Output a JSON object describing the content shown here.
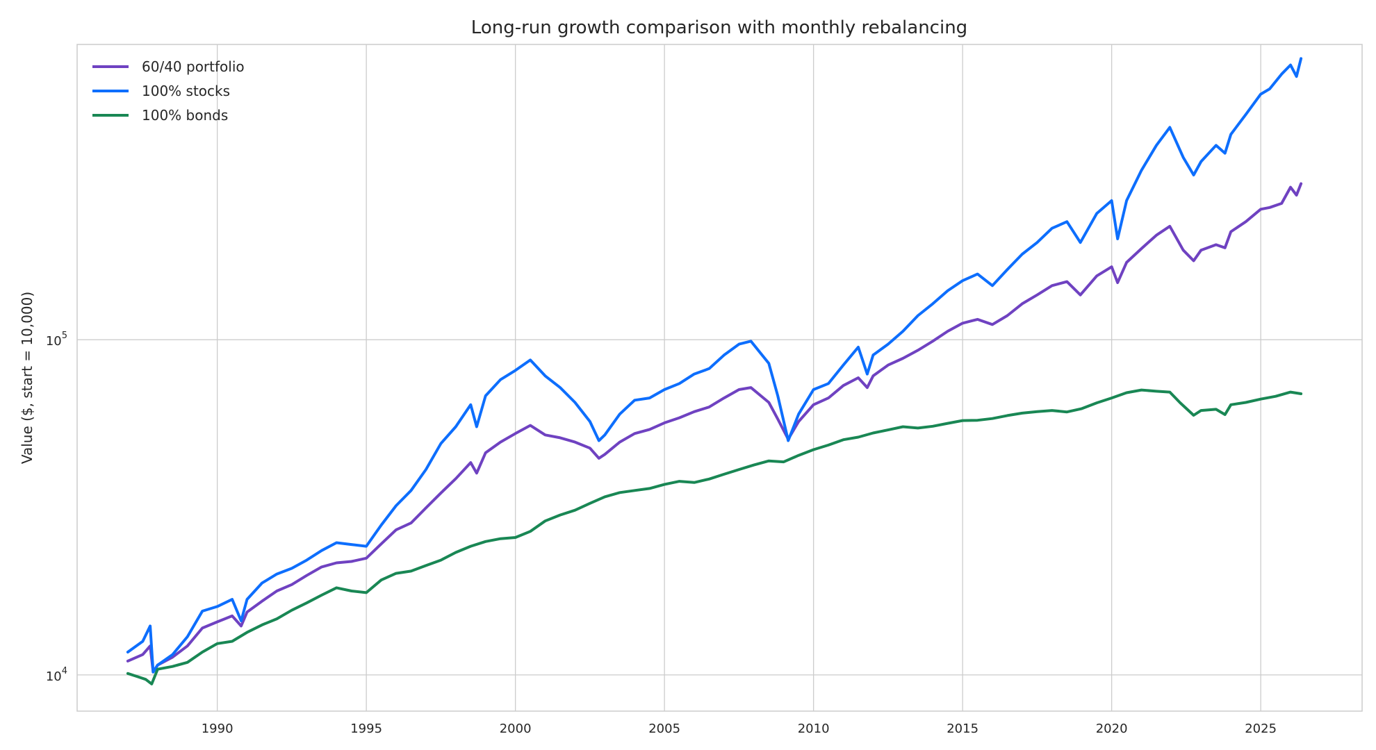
{
  "chart_data": {
    "type": "line",
    "title": "Long-run growth comparison with monthly rebalancing",
    "xlabel": "",
    "ylabel": "Value ($, start = 10,000)",
    "yscale": "log",
    "xlim": [
      1985.3,
      2028.4
    ],
    "ylim": [
      7800,
      760000
    ],
    "grid": true,
    "legend_position": "top-left",
    "x_ticks": [
      1990,
      1995,
      2000,
      2005,
      2010,
      2015,
      2020,
      2025
    ],
    "x_tick_labels": [
      "1990",
      "1995",
      "2000",
      "2005",
      "2010",
      "2015",
      "2020",
      "2025"
    ],
    "y_ticks": [
      {
        "value": 10000,
        "base": "10",
        "exp": "4"
      },
      {
        "value": 100000,
        "base": "10",
        "exp": "5"
      }
    ],
    "series": [
      {
        "name": "60/40 portfolio",
        "color": "#6f42c1",
        "points": [
          [
            1987.0,
            11000
          ],
          [
            1987.5,
            11500
          ],
          [
            1987.75,
            12200
          ],
          [
            1987.85,
            10200
          ],
          [
            1988.0,
            10700
          ],
          [
            1988.5,
            11300
          ],
          [
            1989.0,
            12200
          ],
          [
            1989.5,
            13800
          ],
          [
            1990.0,
            14400
          ],
          [
            1990.5,
            15000
          ],
          [
            1990.8,
            14000
          ],
          [
            1991.0,
            15400
          ],
          [
            1991.5,
            16600
          ],
          [
            1992.0,
            17800
          ],
          [
            1992.5,
            18600
          ],
          [
            1993.0,
            19800
          ],
          [
            1993.5,
            21000
          ],
          [
            1994.0,
            21600
          ],
          [
            1994.5,
            21800
          ],
          [
            1995.0,
            22300
          ],
          [
            1995.5,
            24600
          ],
          [
            1996.0,
            27100
          ],
          [
            1996.5,
            28400
          ],
          [
            1997.0,
            31500
          ],
          [
            1997.5,
            34900
          ],
          [
            1998.0,
            38500
          ],
          [
            1998.5,
            43000
          ],
          [
            1998.7,
            40000
          ],
          [
            1999.0,
            46000
          ],
          [
            1999.5,
            49500
          ],
          [
            2000.0,
            52500
          ],
          [
            2000.5,
            55500
          ],
          [
            2001.0,
            52000
          ],
          [
            2001.5,
            51000
          ],
          [
            2002.0,
            49500
          ],
          [
            2002.5,
            47500
          ],
          [
            2002.8,
            44300
          ],
          [
            2003.0,
            45500
          ],
          [
            2003.5,
            49500
          ],
          [
            2004.0,
            52500
          ],
          [
            2004.5,
            54000
          ],
          [
            2005.0,
            56500
          ],
          [
            2005.5,
            58500
          ],
          [
            2006.0,
            61000
          ],
          [
            2006.5,
            63000
          ],
          [
            2007.0,
            67000
          ],
          [
            2007.5,
            71000
          ],
          [
            2007.9,
            72000
          ],
          [
            2008.5,
            65000
          ],
          [
            2008.8,
            58000
          ],
          [
            2009.15,
            50500
          ],
          [
            2009.5,
            57000
          ],
          [
            2010.0,
            64000
          ],
          [
            2010.5,
            67000
          ],
          [
            2011.0,
            73000
          ],
          [
            2011.5,
            77000
          ],
          [
            2011.8,
            72000
          ],
          [
            2012.0,
            78000
          ],
          [
            2012.5,
            84000
          ],
          [
            2013.0,
            88000
          ],
          [
            2013.5,
            93000
          ],
          [
            2014.0,
            99000
          ],
          [
            2014.5,
            106000
          ],
          [
            2015.0,
            112000
          ],
          [
            2015.5,
            115000
          ],
          [
            2016.0,
            111000
          ],
          [
            2016.5,
            118000
          ],
          [
            2017.0,
            128000
          ],
          [
            2017.5,
            136000
          ],
          [
            2018.0,
            145000
          ],
          [
            2018.5,
            149000
          ],
          [
            2018.95,
            136000
          ],
          [
            2019.5,
            155000
          ],
          [
            2020.0,
            165000
          ],
          [
            2020.2,
            148000
          ],
          [
            2020.5,
            170000
          ],
          [
            2021.0,
            187000
          ],
          [
            2021.5,
            205000
          ],
          [
            2021.95,
            218000
          ],
          [
            2022.4,
            185000
          ],
          [
            2022.75,
            172000
          ],
          [
            2023.0,
            185000
          ],
          [
            2023.5,
            192000
          ],
          [
            2023.8,
            188000
          ],
          [
            2024.0,
            210000
          ],
          [
            2024.5,
            225000
          ],
          [
            2025.0,
            245000
          ],
          [
            2025.3,
            248000
          ],
          [
            2025.7,
            255000
          ],
          [
            2026.0,
            285000
          ],
          [
            2026.2,
            270000
          ],
          [
            2026.35,
            292000
          ]
        ]
      },
      {
        "name": "100% stocks",
        "color": "#0d6efd",
        "points": [
          [
            1987.0,
            11700
          ],
          [
            1987.5,
            12600
          ],
          [
            1987.75,
            14000
          ],
          [
            1987.85,
            10200
          ],
          [
            1988.0,
            10700
          ],
          [
            1988.5,
            11500
          ],
          [
            1989.0,
            13000
          ],
          [
            1989.5,
            15500
          ],
          [
            1990.0,
            16000
          ],
          [
            1990.5,
            16800
          ],
          [
            1990.8,
            14500
          ],
          [
            1991.0,
            16800
          ],
          [
            1991.5,
            18800
          ],
          [
            1992.0,
            20000
          ],
          [
            1992.5,
            20800
          ],
          [
            1993.0,
            22000
          ],
          [
            1993.5,
            23500
          ],
          [
            1994.0,
            24800
          ],
          [
            1994.5,
            24500
          ],
          [
            1995.0,
            24200
          ],
          [
            1995.5,
            28000
          ],
          [
            1996.0,
            32000
          ],
          [
            1996.5,
            35500
          ],
          [
            1997.0,
            41000
          ],
          [
            1997.5,
            49000
          ],
          [
            1998.0,
            55000
          ],
          [
            1998.5,
            64000
          ],
          [
            1998.7,
            55000
          ],
          [
            1999.0,
            68000
          ],
          [
            1999.5,
            76000
          ],
          [
            2000.0,
            81000
          ],
          [
            2000.5,
            87000
          ],
          [
            2001.0,
            78000
          ],
          [
            2001.5,
            72000
          ],
          [
            2002.0,
            65000
          ],
          [
            2002.5,
            57000
          ],
          [
            2002.8,
            50000
          ],
          [
            2003.0,
            52000
          ],
          [
            2003.5,
            60000
          ],
          [
            2004.0,
            66000
          ],
          [
            2004.5,
            67000
          ],
          [
            2005.0,
            71000
          ],
          [
            2005.5,
            74000
          ],
          [
            2006.0,
            79000
          ],
          [
            2006.5,
            82000
          ],
          [
            2007.0,
            90000
          ],
          [
            2007.5,
            97000
          ],
          [
            2007.9,
            99000
          ],
          [
            2008.5,
            85000
          ],
          [
            2008.8,
            68000
          ],
          [
            2009.15,
            50000
          ],
          [
            2009.5,
            60000
          ],
          [
            2010.0,
            71000
          ],
          [
            2010.5,
            74000
          ],
          [
            2011.0,
            84000
          ],
          [
            2011.5,
            95000
          ],
          [
            2011.8,
            79000
          ],
          [
            2012.0,
            90000
          ],
          [
            2012.5,
            97000
          ],
          [
            2013.0,
            106000
          ],
          [
            2013.5,
            118000
          ],
          [
            2014.0,
            128000
          ],
          [
            2014.5,
            140000
          ],
          [
            2015.0,
            150000
          ],
          [
            2015.5,
            157000
          ],
          [
            2016.0,
            145000
          ],
          [
            2016.5,
            162000
          ],
          [
            2017.0,
            180000
          ],
          [
            2017.5,
            195000
          ],
          [
            2018.0,
            215000
          ],
          [
            2018.5,
            225000
          ],
          [
            2018.95,
            195000
          ],
          [
            2019.5,
            238000
          ],
          [
            2020.0,
            260000
          ],
          [
            2020.2,
            200000
          ],
          [
            2020.5,
            260000
          ],
          [
            2021.0,
            320000
          ],
          [
            2021.5,
            380000
          ],
          [
            2021.95,
            430000
          ],
          [
            2022.4,
            350000
          ],
          [
            2022.75,
            310000
          ],
          [
            2023.0,
            340000
          ],
          [
            2023.5,
            380000
          ],
          [
            2023.8,
            360000
          ],
          [
            2024.0,
            410000
          ],
          [
            2024.5,
            470000
          ],
          [
            2025.0,
            540000
          ],
          [
            2025.3,
            560000
          ],
          [
            2025.7,
            620000
          ],
          [
            2026.0,
            660000
          ],
          [
            2026.2,
            610000
          ],
          [
            2026.35,
            690000
          ]
        ]
      },
      {
        "name": "100% bonds",
        "color": "#198754",
        "points": [
          [
            1987.0,
            10100
          ],
          [
            1987.3,
            9900
          ],
          [
            1987.6,
            9700
          ],
          [
            1987.8,
            9400
          ],
          [
            1988.0,
            10400
          ],
          [
            1988.5,
            10600
          ],
          [
            1989.0,
            10900
          ],
          [
            1989.5,
            11700
          ],
          [
            1990.0,
            12400
          ],
          [
            1990.5,
            12600
          ],
          [
            1991.0,
            13400
          ],
          [
            1991.5,
            14100
          ],
          [
            1992.0,
            14700
          ],
          [
            1992.5,
            15600
          ],
          [
            1993.0,
            16400
          ],
          [
            1993.5,
            17300
          ],
          [
            1994.0,
            18200
          ],
          [
            1994.5,
            17800
          ],
          [
            1995.0,
            17600
          ],
          [
            1995.5,
            19200
          ],
          [
            1996.0,
            20100
          ],
          [
            1996.5,
            20400
          ],
          [
            1997.0,
            21200
          ],
          [
            1997.5,
            22000
          ],
          [
            1998.0,
            23200
          ],
          [
            1998.5,
            24200
          ],
          [
            1999.0,
            25000
          ],
          [
            1999.5,
            25500
          ],
          [
            2000.0,
            25700
          ],
          [
            2000.5,
            26800
          ],
          [
            2001.0,
            28800
          ],
          [
            2001.5,
            30000
          ],
          [
            2002.0,
            31000
          ],
          [
            2002.5,
            32500
          ],
          [
            2003.0,
            34000
          ],
          [
            2003.5,
            35000
          ],
          [
            2004.0,
            35500
          ],
          [
            2004.5,
            36000
          ],
          [
            2005.0,
            37000
          ],
          [
            2005.5,
            37800
          ],
          [
            2006.0,
            37500
          ],
          [
            2006.5,
            38400
          ],
          [
            2007.0,
            39700
          ],
          [
            2007.5,
            41000
          ],
          [
            2008.0,
            42300
          ],
          [
            2008.5,
            43500
          ],
          [
            2009.0,
            43200
          ],
          [
            2009.5,
            45200
          ],
          [
            2010.0,
            47000
          ],
          [
            2010.5,
            48500
          ],
          [
            2011.0,
            50300
          ],
          [
            2011.5,
            51200
          ],
          [
            2012.0,
            52700
          ],
          [
            2012.5,
            53800
          ],
          [
            2013.0,
            55000
          ],
          [
            2013.5,
            54500
          ],
          [
            2014.0,
            55200
          ],
          [
            2014.5,
            56300
          ],
          [
            2015.0,
            57400
          ],
          [
            2015.5,
            57500
          ],
          [
            2016.0,
            58200
          ],
          [
            2016.5,
            59400
          ],
          [
            2017.0,
            60400
          ],
          [
            2017.5,
            61000
          ],
          [
            2018.0,
            61500
          ],
          [
            2018.5,
            60900
          ],
          [
            2019.0,
            62300
          ],
          [
            2019.5,
            64800
          ],
          [
            2020.0,
            67000
          ],
          [
            2020.5,
            69500
          ],
          [
            2021.0,
            70800
          ],
          [
            2021.5,
            70200
          ],
          [
            2021.95,
            69800
          ],
          [
            2022.3,
            64800
          ],
          [
            2022.75,
            59500
          ],
          [
            2023.0,
            61500
          ],
          [
            2023.5,
            62000
          ],
          [
            2023.8,
            59800
          ],
          [
            2024.0,
            64000
          ],
          [
            2024.5,
            65000
          ],
          [
            2025.0,
            66500
          ],
          [
            2025.5,
            67800
          ],
          [
            2026.0,
            69800
          ],
          [
            2026.35,
            69000
          ]
        ]
      }
    ]
  }
}
